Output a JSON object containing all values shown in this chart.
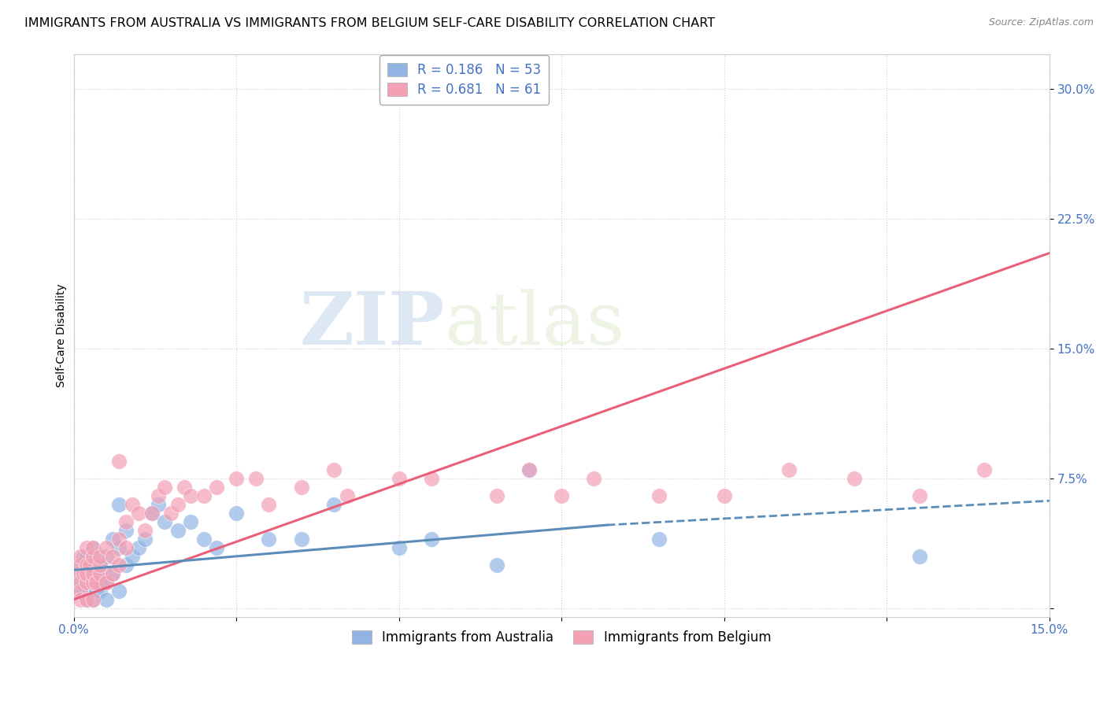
{
  "title": "IMMIGRANTS FROM AUSTRALIA VS IMMIGRANTS FROM BELGIUM SELF-CARE DISABILITY CORRELATION CHART",
  "source": "Source: ZipAtlas.com",
  "ylabel": "Self-Care Disability",
  "xlim": [
    0.0,
    0.15
  ],
  "ylim": [
    -0.005,
    0.32
  ],
  "xticks": [
    0.0,
    0.025,
    0.05,
    0.075,
    0.1,
    0.125,
    0.15
  ],
  "xticklabels": [
    "0.0%",
    "",
    "",
    "",
    "",
    "",
    "15.0%"
  ],
  "yticks": [
    0.0,
    0.075,
    0.15,
    0.225,
    0.3
  ],
  "yticklabels": [
    "",
    "7.5%",
    "15.0%",
    "22.5%",
    "30.0%"
  ],
  "australia_R": 0.186,
  "australia_N": 53,
  "belgium_R": 0.681,
  "belgium_N": 61,
  "australia_color": "#92b4e3",
  "belgium_color": "#f4a0b5",
  "australia_line_color": "#5b8db8",
  "belgium_line_color": "#e8607a",
  "watermark_zip": "ZIP",
  "watermark_atlas": "atlas",
  "australia_x": [
    0.0005,
    0.001,
    0.001,
    0.001,
    0.0015,
    0.0015,
    0.002,
    0.002,
    0.002,
    0.002,
    0.002,
    0.0025,
    0.003,
    0.003,
    0.003,
    0.003,
    0.003,
    0.003,
    0.0035,
    0.004,
    0.004,
    0.004,
    0.004,
    0.005,
    0.005,
    0.005,
    0.006,
    0.006,
    0.007,
    0.007,
    0.007,
    0.008,
    0.008,
    0.009,
    0.01,
    0.011,
    0.012,
    0.013,
    0.014,
    0.016,
    0.018,
    0.02,
    0.022,
    0.025,
    0.03,
    0.035,
    0.04,
    0.05,
    0.055,
    0.065,
    0.07,
    0.09,
    0.13
  ],
  "australia_y": [
    0.01,
    0.015,
    0.02,
    0.025,
    0.01,
    0.03,
    0.015,
    0.02,
    0.025,
    0.005,
    0.03,
    0.01,
    0.015,
    0.02,
    0.025,
    0.005,
    0.03,
    0.035,
    0.01,
    0.015,
    0.02,
    0.025,
    0.01,
    0.03,
    0.015,
    0.005,
    0.04,
    0.02,
    0.06,
    0.035,
    0.01,
    0.045,
    0.025,
    0.03,
    0.035,
    0.04,
    0.055,
    0.06,
    0.05,
    0.045,
    0.05,
    0.04,
    0.035,
    0.055,
    0.04,
    0.04,
    0.06,
    0.035,
    0.04,
    0.025,
    0.08,
    0.04,
    0.03
  ],
  "belgium_x": [
    0.0005,
    0.001,
    0.001,
    0.001,
    0.001,
    0.001,
    0.0015,
    0.002,
    0.002,
    0.002,
    0.002,
    0.002,
    0.0025,
    0.003,
    0.003,
    0.003,
    0.003,
    0.003,
    0.0035,
    0.004,
    0.004,
    0.004,
    0.005,
    0.005,
    0.006,
    0.006,
    0.007,
    0.007,
    0.007,
    0.008,
    0.008,
    0.009,
    0.01,
    0.011,
    0.012,
    0.013,
    0.014,
    0.015,
    0.016,
    0.017,
    0.018,
    0.02,
    0.022,
    0.025,
    0.028,
    0.03,
    0.035,
    0.04,
    0.042,
    0.05,
    0.055,
    0.065,
    0.07,
    0.075,
    0.08,
    0.09,
    0.1,
    0.11,
    0.12,
    0.13,
    0.14
  ],
  "belgium_y": [
    0.02,
    0.025,
    0.015,
    0.01,
    0.03,
    0.005,
    0.02,
    0.025,
    0.015,
    0.02,
    0.035,
    0.005,
    0.025,
    0.015,
    0.02,
    0.03,
    0.005,
    0.035,
    0.015,
    0.02,
    0.025,
    0.03,
    0.035,
    0.015,
    0.03,
    0.02,
    0.085,
    0.04,
    0.025,
    0.05,
    0.035,
    0.06,
    0.055,
    0.045,
    0.055,
    0.065,
    0.07,
    0.055,
    0.06,
    0.07,
    0.065,
    0.065,
    0.07,
    0.075,
    0.075,
    0.06,
    0.07,
    0.08,
    0.065,
    0.075,
    0.075,
    0.065,
    0.08,
    0.065,
    0.075,
    0.065,
    0.065,
    0.08,
    0.075,
    0.065,
    0.08
  ],
  "title_fontsize": 11.5,
  "label_fontsize": 10,
  "tick_fontsize": 11,
  "legend_fontsize": 12
}
